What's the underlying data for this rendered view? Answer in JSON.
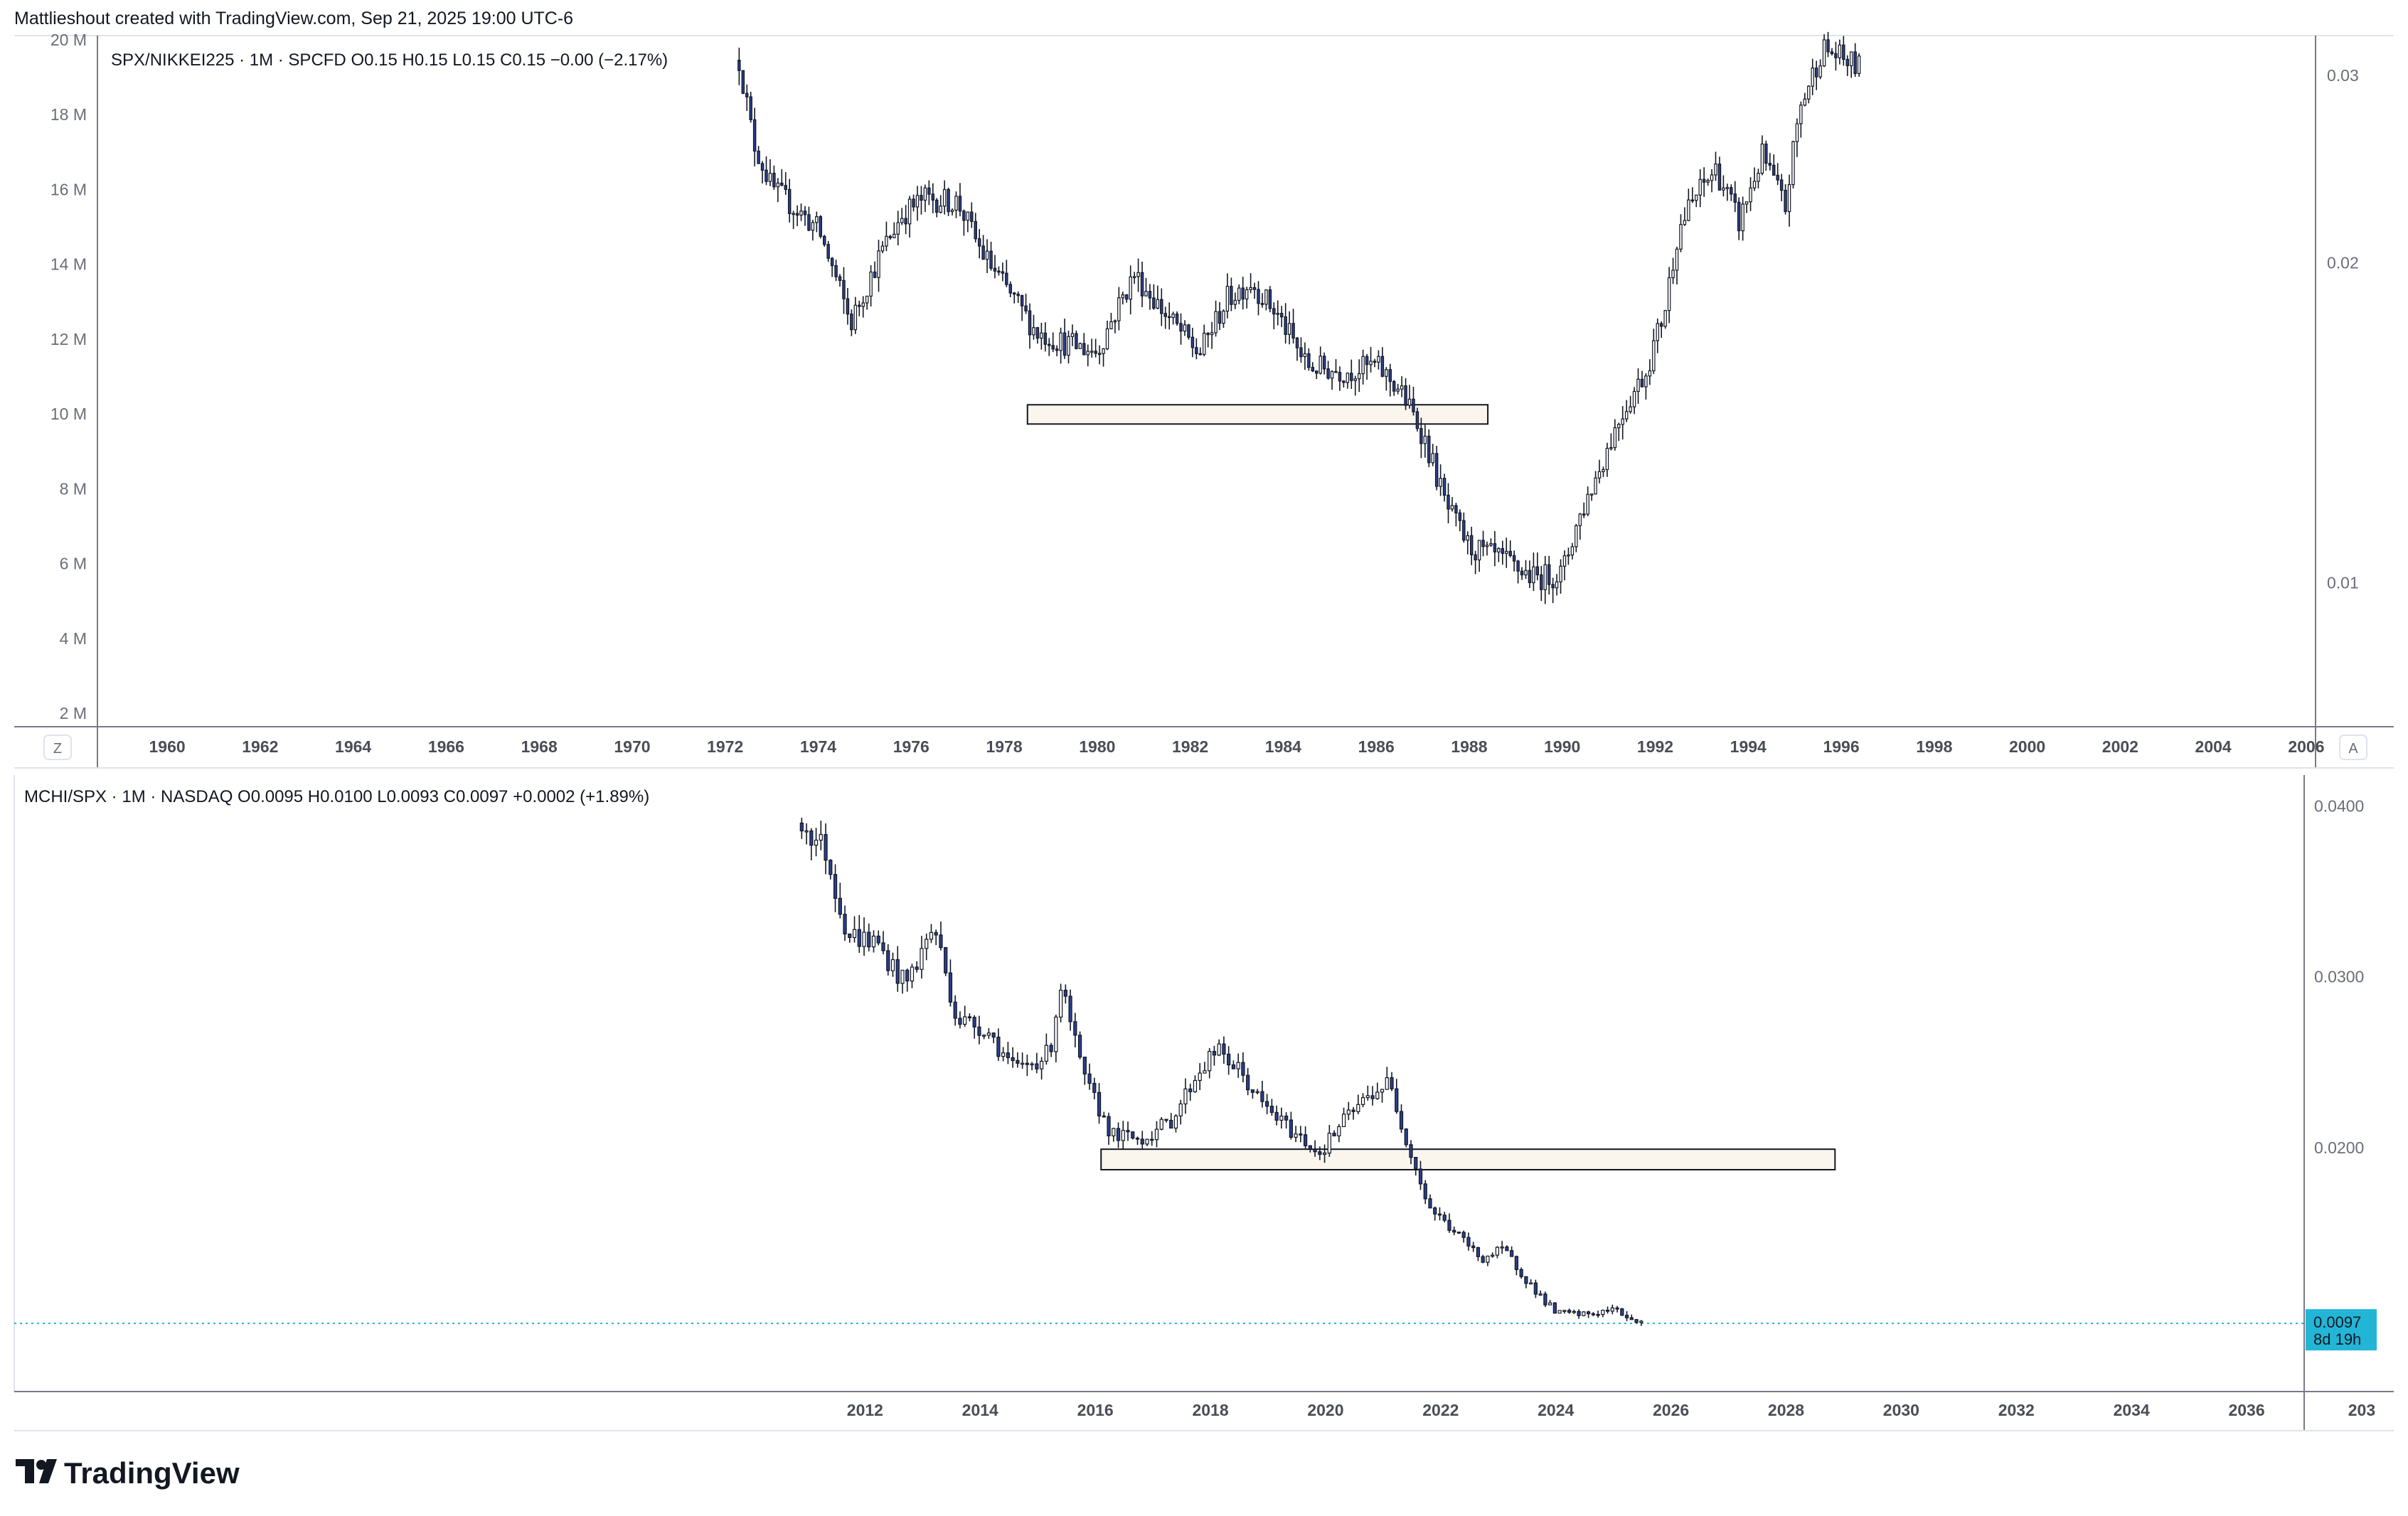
{
  "header": {
    "text": "Mattlieshout created with TradingView.com, Sep 21, 2025 19:00 UTC-6"
  },
  "brand": {
    "logo_text": "TradingView",
    "logo_icon": "tradingview-logo-icon"
  },
  "colors": {
    "candle_body_up": "#ffffff",
    "candle_body_down": "#131722",
    "candle_accent": "#2a3f8f",
    "rect_fill": "#faf6ee",
    "price_badge": "#22b5d6",
    "grid_axis": "#9598a1"
  },
  "chart_data": [
    {
      "type": "candlestick",
      "symbol": "SPX/NIKKEI225",
      "legend": {
        "symbol_text": "SPX/NIKKEI225 · 1M · SPCFD",
        "o_label": "O",
        "o_value": "0.15",
        "h_label": "H",
        "h_value": "0.15",
        "l_label": "L",
        "l_value": "0.15",
        "c_label": "C",
        "c_value": "0.15",
        "change": "−0.00 (−2.17%)"
      },
      "x_ticks": [
        "1960",
        "1962",
        "1964",
        "1966",
        "1968",
        "1970",
        "1972",
        "1974",
        "1976",
        "1978",
        "1980",
        "1982",
        "1984",
        "1986",
        "1988",
        "1990",
        "1992",
        "1994",
        "1996",
        "1998",
        "2000",
        "2002",
        "2004",
        "2006"
      ],
      "x_range": [
        1958.5,
        2006.2
      ],
      "left_axis": {
        "ticks": [
          "2 M",
          "4 M",
          "6 M",
          "8 M",
          "10 M",
          "12 M",
          "14 M",
          "16 M",
          "18 M",
          "20 M"
        ]
      },
      "right_axis": {
        "ticks": [
          "0.01",
          "0.02",
          "0.03"
        ]
      },
      "axis_buttons": {
        "left": "Z",
        "right": "A"
      },
      "scale": "log",
      "y_range": [
        0.0074,
        0.0322
      ],
      "series": [
        {
          "anchors": [
            [
              1972.3,
              0.031
            ],
            [
              1972.6,
              0.026
            ],
            [
              1973.0,
              0.0235
            ],
            [
              1973.5,
              0.0225
            ],
            [
              1974.0,
              0.0215
            ],
            [
              1974.7,
              0.0175
            ],
            [
              1975.3,
              0.0202
            ],
            [
              1975.8,
              0.0222
            ],
            [
              1976.3,
              0.023
            ],
            [
              1977.0,
              0.0228
            ],
            [
              1977.5,
              0.0205
            ],
            [
              1978.0,
              0.019
            ],
            [
              1978.7,
              0.0172
            ],
            [
              1979.3,
              0.0168
            ],
            [
              1980.0,
              0.0165
            ],
            [
              1980.8,
              0.0195
            ],
            [
              1981.5,
              0.0178
            ],
            [
              1982.2,
              0.0164
            ],
            [
              1982.8,
              0.0185
            ],
            [
              1983.3,
              0.0192
            ],
            [
              1983.9,
              0.0178
            ],
            [
              1984.5,
              0.016
            ],
            [
              1985.3,
              0.0158
            ],
            [
              1986.0,
              0.016
            ],
            [
              1986.5,
              0.0152
            ],
            [
              1987.0,
              0.0138
            ],
            [
              1987.5,
              0.0118
            ],
            [
              1988.0,
              0.0108
            ],
            [
              1988.7,
              0.0105
            ],
            [
              1989.4,
              0.0101
            ],
            [
              1990.0,
              0.0102
            ],
            [
              1990.3,
              0.0113
            ],
            [
              1990.8,
              0.0128
            ],
            [
              1991.3,
              0.0145
            ],
            [
              1991.8,
              0.0158
            ],
            [
              1992.2,
              0.018
            ],
            [
              1992.5,
              0.0215
            ],
            [
              1992.9,
              0.0232
            ],
            [
              1993.3,
              0.0245
            ],
            [
              1993.8,
              0.0218
            ],
            [
              1994.3,
              0.0252
            ],
            [
              1994.8,
              0.0225
            ],
            [
              1995.1,
              0.0278
            ],
            [
              1995.6,
              0.0318
            ],
            [
              1996.4,
              0.0305
            ]
          ],
          "noise": 0.055
        }
      ],
      "zones": [
        {
          "label": "",
          "x_start": 1978.5,
          "x_end": 1988.4,
          "y_top": 0.0147,
          "y_bottom": 0.0141
        }
      ]
    },
    {
      "type": "candlestick",
      "symbol": "MCHI/SPX",
      "legend": {
        "symbol_text": "MCHI/SPX · 1M · NASDAQ",
        "o_label": "O",
        "o_value": "0.0095",
        "h_label": "H",
        "h_value": "0.0100",
        "l_label": "L",
        "l_value": "0.0093",
        "c_label": "C",
        "c_value": "0.0097",
        "change": "+0.0002 (+1.89%)"
      },
      "x_ticks": [
        "2012",
        "2014",
        "2016",
        "2018",
        "2020",
        "2022",
        "2024",
        "2026",
        "2028",
        "2030",
        "2032",
        "2034",
        "2036",
        "203"
      ],
      "x_range": [
        1997.22,
        2037.0
      ],
      "right_axis": {
        "ticks": [
          "0.0400",
          "0.0300",
          "0.0200"
        ]
      },
      "scale": "linear",
      "y_range": [
        0.006,
        0.0416
      ],
      "last_price": {
        "value": "0.0097",
        "countdown": "8d 19h"
      },
      "series": [
        {
          "anchors": [
            [
              2010.9,
              0.039
            ],
            [
              2011.3,
              0.0375
            ],
            [
              2011.7,
              0.0325
            ],
            [
              2012.2,
              0.032
            ],
            [
              2012.7,
              0.0295
            ],
            [
              2013.2,
              0.033
            ],
            [
              2013.6,
              0.0275
            ],
            [
              2014.1,
              0.027
            ],
            [
              2014.6,
              0.0245
            ],
            [
              2015.2,
              0.0255
            ],
            [
              2015.4,
              0.0295
            ],
            [
              2015.8,
              0.024
            ],
            [
              2016.3,
              0.0207
            ],
            [
              2016.8,
              0.0205
            ],
            [
              2017.3,
              0.0215
            ],
            [
              2017.8,
              0.0245
            ],
            [
              2018.1,
              0.0257
            ],
            [
              2018.5,
              0.0245
            ],
            [
              2018.9,
              0.0225
            ],
            [
              2019.4,
              0.021
            ],
            [
              2019.9,
              0.0197
            ],
            [
              2020.3,
              0.0215
            ],
            [
              2020.8,
              0.0232
            ],
            [
              2021.1,
              0.0238
            ],
            [
              2021.5,
              0.0195
            ],
            [
              2021.8,
              0.0165
            ],
            [
              2022.2,
              0.0152
            ],
            [
              2022.7,
              0.0135
            ],
            [
              2023.1,
              0.014
            ],
            [
              2023.6,
              0.0118
            ],
            [
              2024.0,
              0.0103
            ],
            [
              2024.5,
              0.0102
            ],
            [
              2025.0,
              0.0105
            ],
            [
              2025.5,
              0.0097
            ]
          ],
          "noise": 0.045
        }
      ],
      "zones": [
        {
          "label": "",
          "x_start": 2016.1,
          "x_end": 2028.85,
          "y_top": 0.0199,
          "y_bottom": 0.0187
        }
      ]
    }
  ]
}
